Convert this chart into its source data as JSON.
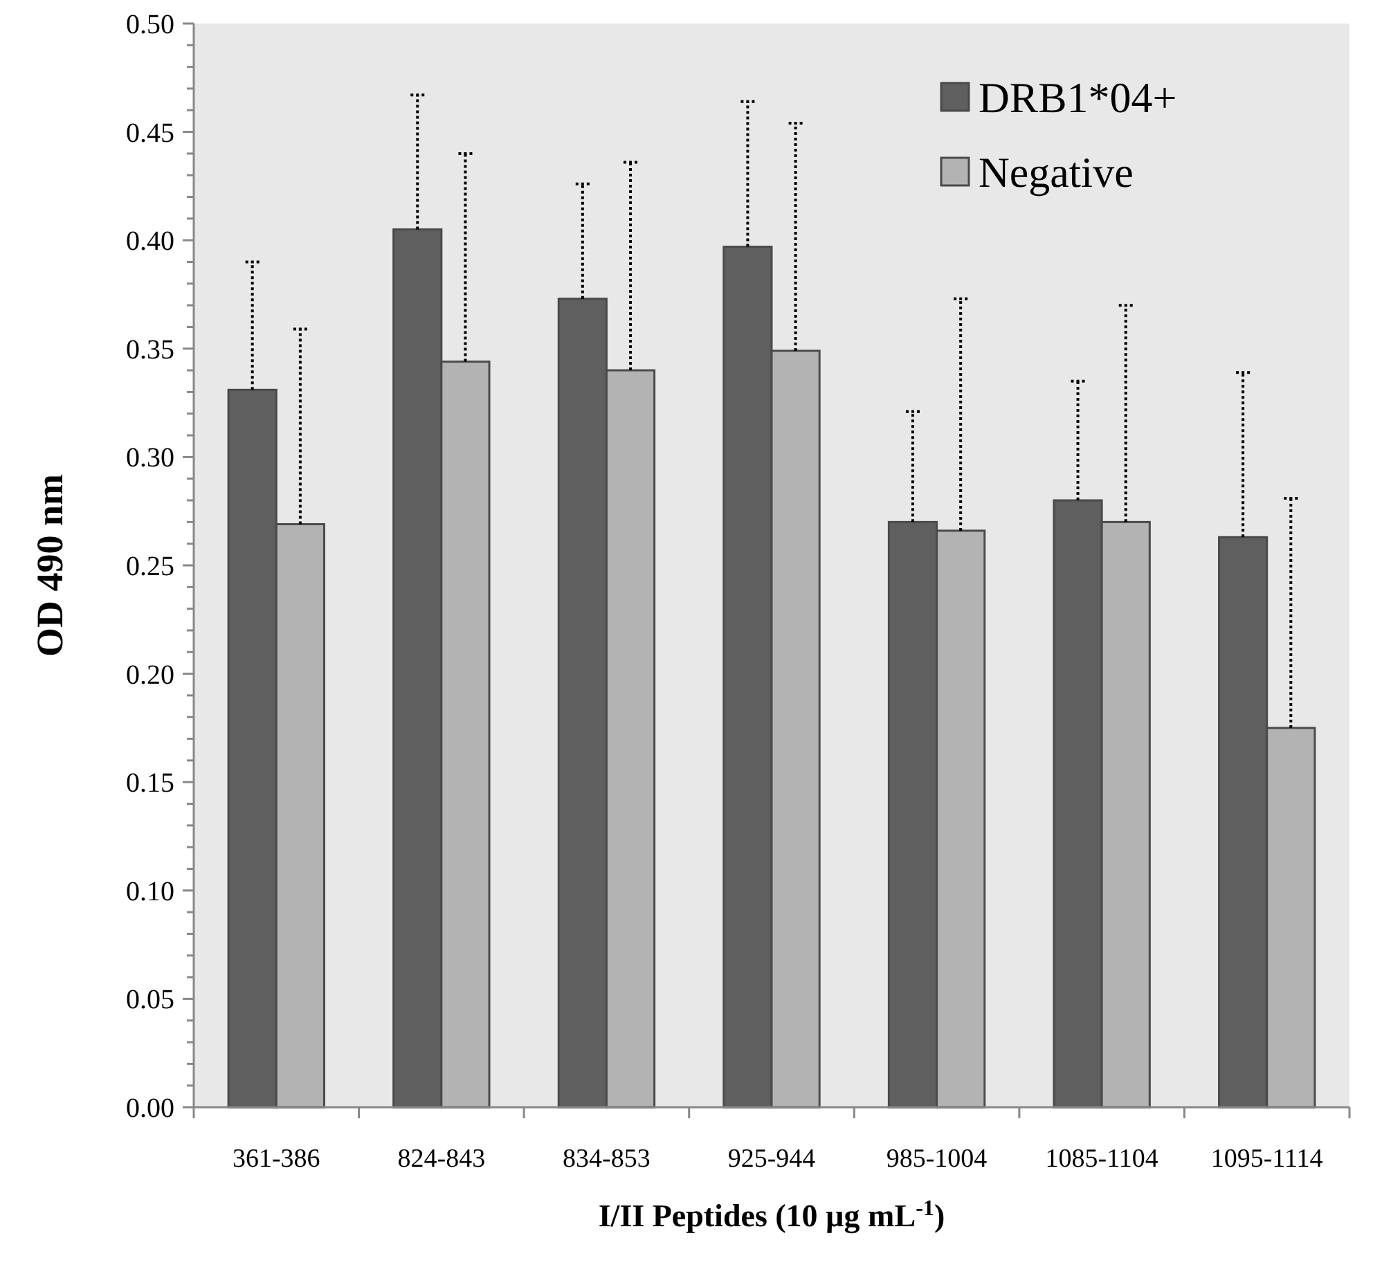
{
  "chart_data": {
    "type": "bar",
    "xlabel": "I/II Peptides (10 µg mL$^{-1}$)",
    "ylabel": "OD 490 nm",
    "categories": [
      "361-386",
      "824-843",
      "834-853",
      "925-944",
      "985-1004",
      "1085-1104",
      "1095-1114"
    ],
    "series": [
      {
        "name": "DRB1*04+",
        "color": "#5f5f5f",
        "values": [
          0.331,
          0.405,
          0.373,
          0.397,
          0.27,
          0.28,
          0.263
        ],
        "errors": [
          [
            0.331,
            0.39
          ],
          [
            0.405,
            0.467
          ],
          [
            0.373,
            0.426
          ],
          [
            0.397,
            0.464
          ],
          [
            0.27,
            0.321
          ],
          [
            0.28,
            0.335
          ],
          [
            0.263,
            0.339
          ]
        ]
      },
      {
        "name": "Negative",
        "color": "#b3b3b3",
        "values": [
          0.269,
          0.344,
          0.34,
          0.349,
          0.266,
          0.27,
          0.175
        ],
        "errors": [
          [
            0.269,
            0.359
          ],
          [
            0.344,
            0.44
          ],
          [
            0.34,
            0.436
          ],
          [
            0.349,
            0.454
          ],
          [
            0.266,
            0.373
          ],
          [
            0.27,
            0.37
          ],
          [
            0.175,
            0.281
          ]
        ]
      }
    ],
    "ylim": [
      0,
      0.5
    ],
    "yticks": [
      {
        "value": 0,
        "label": "0.00"
      },
      {
        "value": 0.01,
        "label": null
      },
      {
        "value": 0.02,
        "label": null
      },
      {
        "value": 0.03,
        "label": null
      },
      {
        "value": 0.04,
        "label": null
      },
      {
        "value": 0.05,
        "label": "0.05"
      },
      {
        "value": 0.06,
        "label": null
      },
      {
        "value": 0.07,
        "label": null
      },
      {
        "value": 0.08,
        "label": null
      },
      {
        "value": 0.09,
        "label": null
      },
      {
        "value": 0.1,
        "label": "0.10"
      },
      {
        "value": 0.11,
        "label": null
      },
      {
        "value": 0.12,
        "label": null
      },
      {
        "value": 0.13,
        "label": null
      },
      {
        "value": 0.14,
        "label": null
      },
      {
        "value": 0.15,
        "label": "0.15"
      },
      {
        "value": 0.16,
        "label": null
      },
      {
        "value": 0.17,
        "label": null
      },
      {
        "value": 0.18,
        "label": null
      },
      {
        "value": 0.19,
        "label": null
      },
      {
        "value": 0.2,
        "label": "0.20"
      },
      {
        "value": 0.21,
        "label": null
      },
      {
        "value": 0.22,
        "label": null
      },
      {
        "value": 0.23,
        "label": null
      },
      {
        "value": 0.24,
        "label": null
      },
      {
        "value": 0.25,
        "label": "0.25"
      },
      {
        "value": 0.26,
        "label": null
      },
      {
        "value": 0.27,
        "label": null
      },
      {
        "value": 0.28,
        "label": null
      },
      {
        "value": 0.29,
        "label": null
      },
      {
        "value": 0.3,
        "label": "0.30"
      },
      {
        "value": 0.31,
        "label": null
      },
      {
        "value": 0.32,
        "label": null
      },
      {
        "value": 0.33,
        "label": null
      },
      {
        "value": 0.34,
        "label": null
      },
      {
        "value": 0.35,
        "label": "0.35"
      },
      {
        "value": 0.36,
        "label": null
      },
      {
        "value": 0.37,
        "label": null
      },
      {
        "value": 0.38,
        "label": null
      },
      {
        "value": 0.39,
        "label": null
      },
      {
        "value": 0.4,
        "label": "0.40"
      },
      {
        "value": 0.41,
        "label": null
      },
      {
        "value": 0.42,
        "label": null
      },
      {
        "value": 0.43,
        "label": null
      },
      {
        "value": 0.44,
        "label": null
      },
      {
        "value": 0.45,
        "label": "0.45"
      },
      {
        "value": 0.46,
        "label": null
      },
      {
        "value": 0.47,
        "label": null
      },
      {
        "value": 0.48,
        "label": null
      },
      {
        "value": 0.49,
        "label": null
      },
      {
        "value": 0.5,
        "label": "0.50"
      }
    ],
    "grid": false,
    "legend": "top right"
  }
}
